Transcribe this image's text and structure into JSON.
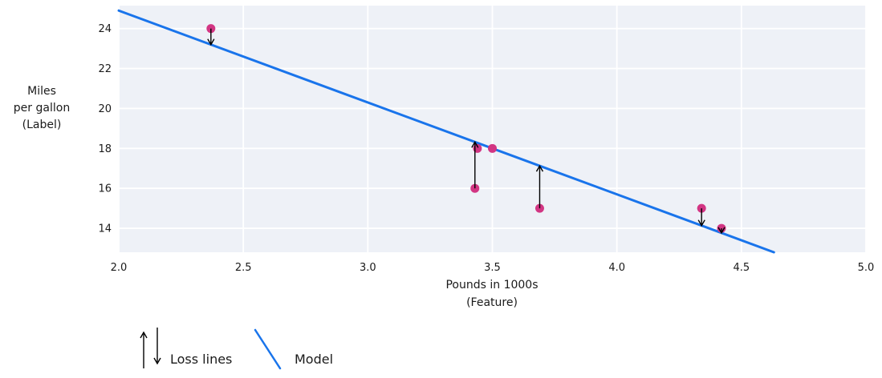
{
  "chart_data": {
    "type": "scatter",
    "title": "",
    "xlabel_lines": [
      "Pounds in 1000s",
      "(Feature)"
    ],
    "ylabel_lines": [
      "Miles",
      "per gallon",
      "(Label)"
    ],
    "x_ticks": [
      "2.0",
      "2.5",
      "3.0",
      "3.5",
      "4.0",
      "4.5",
      "5.0"
    ],
    "y_ticks": [
      "14",
      "16",
      "18",
      "20",
      "22",
      "24"
    ],
    "xlim": [
      2.0,
      5.0
    ],
    "ylim": [
      12.8,
      25.15
    ],
    "grid": true,
    "points": [
      {
        "x": 2.37,
        "y": 24,
        "loss": true
      },
      {
        "x": 3.43,
        "y": 16,
        "loss": true
      },
      {
        "x": 3.44,
        "y": 18,
        "loss": false
      },
      {
        "x": 3.5,
        "y": 18,
        "loss": false
      },
      {
        "x": 3.69,
        "y": 15,
        "loss": true
      },
      {
        "x": 4.34,
        "y": 15,
        "loss": true
      },
      {
        "x": 4.42,
        "y": 14,
        "loss": true
      }
    ],
    "model": {
      "slope": -4.6,
      "intercept": 34.1
    },
    "legend": [
      {
        "label": "Loss lines",
        "symbol": "up-down-arrows"
      },
      {
        "label": "Model",
        "symbol": "line-segment"
      }
    ],
    "legend_position": "bottom-left",
    "colors": {
      "model_line": "#1974eb",
      "point": "#d23583",
      "plot_bg": "#eef1f7",
      "gridline": "#ffffff",
      "text": "#1a1a1a",
      "loss_arrow": "#000000"
    }
  }
}
